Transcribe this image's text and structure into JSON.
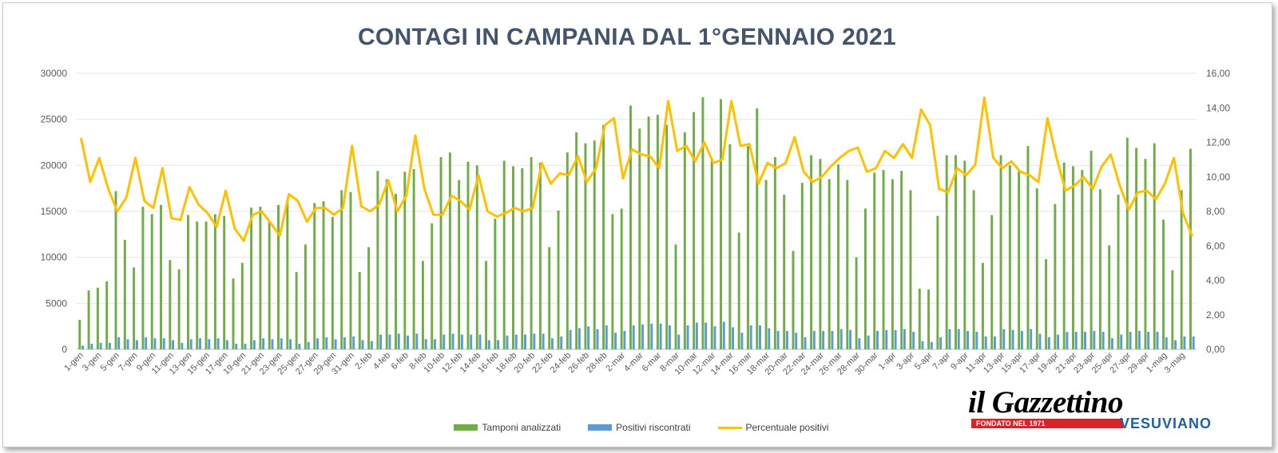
{
  "chart_data": {
    "type": "bar",
    "title": "CONTAGI IN CAMPANIA DAL 1°GENNAIO 2021",
    "y_left": {
      "min": 0,
      "max": 30000,
      "ticks": [
        "0",
        "5000",
        "10000",
        "15000",
        "20000",
        "25000",
        "30000"
      ]
    },
    "y_right": {
      "min": 0,
      "max": 16,
      "ticks": [
        "0,00",
        "2,00",
        "4,00",
        "6,00",
        "8,00",
        "10,00",
        "12,00",
        "14,00",
        "16,00"
      ]
    },
    "x_labels": [
      "1-gen",
      "3-gen",
      "5-gen",
      "7-gen",
      "9-gen",
      "11-gen",
      "13-gen",
      "15-gen",
      "17-gen",
      "19-gen",
      "21-gen",
      "23-gen",
      "25-gen",
      "27-gen",
      "29-gen",
      "31-gen",
      "2-feb",
      "4-feb",
      "6-feb",
      "8-feb",
      "10-feb",
      "12-feb",
      "14-feb",
      "16-feb",
      "18-feb",
      "20-feb",
      "22-feb",
      "24-feb",
      "26-feb",
      "28-feb",
      "2-mar",
      "4-mar",
      "6-mar",
      "8-mar",
      "10-mar",
      "12-mar",
      "14-mar",
      "16-mar",
      "18-mar",
      "20-mar",
      "22-mar",
      "24-mar",
      "26-mar",
      "28-mar",
      "30-mar",
      "1-apr",
      "3-apr",
      "5-apr",
      "7-apr",
      "9-apr",
      "11-apr",
      "13-apr",
      "15-apr",
      "17-apr",
      "19-apr",
      "21-apr",
      "23-apr",
      "25-apr",
      "27-apr",
      "29-apr",
      "1-mag",
      "3-mag"
    ],
    "grid": true,
    "legend_position": "bottom",
    "series": [
      {
        "name": "Tamponi analizzati",
        "type": "bar",
        "axis": "left",
        "color": "#70ad47",
        "values": [
          3200,
          6400,
          6700,
          7400,
          17200,
          11900,
          8900,
          15500,
          14700,
          15700,
          9700,
          8700,
          14600,
          13900,
          13900,
          14700,
          14500,
          7700,
          9400,
          15400,
          15500,
          13900,
          15700,
          16200,
          8400,
          11400,
          15900,
          16100,
          14400,
          17300,
          17100,
          8400,
          11100,
          19400,
          18500,
          16900,
          19300,
          19600,
          9600,
          13700,
          20900,
          21400,
          18400,
          20400,
          20000,
          9600,
          14200,
          20500,
          19900,
          19700,
          20900,
          20300,
          11100,
          15100,
          21400,
          23600,
          22400,
          22700,
          24400,
          14700,
          15300,
          26500,
          24000,
          25300,
          25500,
          24400,
          11400,
          23600,
          25800,
          27400,
          20700,
          27200,
          22300,
          12700,
          22100,
          26200,
          18400,
          20900,
          16800,
          10700,
          18100,
          21100,
          20700,
          18500,
          20100,
          18400,
          10000,
          15300,
          19200,
          19500,
          18500,
          19400,
          17300,
          6600,
          6500,
          14500,
          21100,
          21100,
          20500,
          17300,
          9400,
          14600,
          21100,
          20000,
          19400,
          22100,
          17500,
          9800,
          15800,
          20300,
          19900,
          19500,
          21600,
          17400,
          11300,
          16800,
          23000,
          21900,
          20700,
          22400,
          14100,
          8600,
          17300,
          21800
        ]
      },
      {
        "name": "Positivi riscontrati",
        "type": "bar",
        "axis": "left",
        "color": "#5b9bd5",
        "values": [
          400,
          600,
          700,
          700,
          1300,
          1100,
          1000,
          1300,
          1200,
          1200,
          1000,
          700,
          1100,
          1200,
          1100,
          1200,
          1000,
          600,
          600,
          1000,
          1200,
          1100,
          1200,
          1100,
          600,
          800,
          1200,
          1300,
          1100,
          1300,
          1400,
          1000,
          900,
          1600,
          1600,
          1700,
          1500,
          1700,
          1100,
          1100,
          1600,
          1700,
          1600,
          1600,
          1600,
          1000,
          1000,
          1500,
          1600,
          1600,
          1700,
          1700,
          1200,
          1400,
          2100,
          2300,
          2500,
          2200,
          2600,
          1800,
          2000,
          2600,
          2700,
          2800,
          2800,
          2600,
          1600,
          2600,
          2900,
          2900,
          2500,
          3000,
          2400,
          1800,
          2600,
          2600,
          2300,
          2000,
          2000,
          1800,
          1300,
          2000,
          2000,
          2000,
          2200,
          2100,
          1200,
          1500,
          2000,
          2100,
          2100,
          2200,
          1900,
          900,
          800,
          1300,
          2200,
          2200,
          2000,
          1900,
          1400,
          1400,
          2200,
          2100,
          2000,
          2200,
          1700,
          1300,
          1600,
          1900,
          1900,
          1900,
          2000,
          1900,
          1200,
          1600,
          1900,
          2000,
          1900,
          1900,
          1300,
          1000,
          1400,
          1400
        ]
      },
      {
        "name": "Percentuale positivi",
        "type": "line",
        "axis": "right",
        "color": "#ffc000",
        "values": [
          12.2,
          9.7,
          11.1,
          9.3,
          8.0,
          8.8,
          11.1,
          8.6,
          8.2,
          10.5,
          7.6,
          7.5,
          9.4,
          8.4,
          7.9,
          7.1,
          9.2,
          7.0,
          6.3,
          7.8,
          8.0,
          7.3,
          6.6,
          9.0,
          8.6,
          7.4,
          8.2,
          8.2,
          7.8,
          8.2,
          11.8,
          8.3,
          8.0,
          8.4,
          9.8,
          8.0,
          8.9,
          12.4,
          9.3,
          7.8,
          7.8,
          8.9,
          8.6,
          8.1,
          10.1,
          8.0,
          7.7,
          7.9,
          8.2,
          8.0,
          8.2,
          10.8,
          9.6,
          10.2,
          10.1,
          11.2,
          9.7,
          10.5,
          13.0,
          13.4,
          9.9,
          11.6,
          11.3,
          11.2,
          10.5,
          14.4,
          11.5,
          11.8,
          10.9,
          12.0,
          10.8,
          11.0,
          14.4,
          11.8,
          11.9,
          9.6,
          10.8,
          10.5,
          10.8,
          12.3,
          10.3,
          9.7,
          10.0,
          10.6,
          11.1,
          11.5,
          11.7,
          10.3,
          10.5,
          11.5,
          11.1,
          11.9,
          11.1,
          13.9,
          13.0,
          9.3,
          9.1,
          10.5,
          10.1,
          10.7,
          14.6,
          11.1,
          10.5,
          10.9,
          10.3,
          10.1,
          9.7,
          13.4,
          11.1,
          9.2,
          9.5,
          10.0,
          9.3,
          10.6,
          11.3,
          9.5,
          8.1,
          9.1,
          9.2,
          8.7,
          9.6,
          11.1,
          7.9,
          6.6
        ]
      }
    ]
  },
  "legend": [
    {
      "label": "Tamponi analizzati",
      "color": "#70ad47",
      "kind": "bar"
    },
    {
      "label": "Positivi riscontrati",
      "color": "#5b9bd5",
      "kind": "bar"
    },
    {
      "label": "Percentuale positivi",
      "color": "#ffc000",
      "kind": "line"
    }
  ],
  "logo": {
    "name": "il Gazzettino",
    "founded": "FONDATO NEL 1971",
    "subtitle": "VESUVIANO"
  }
}
